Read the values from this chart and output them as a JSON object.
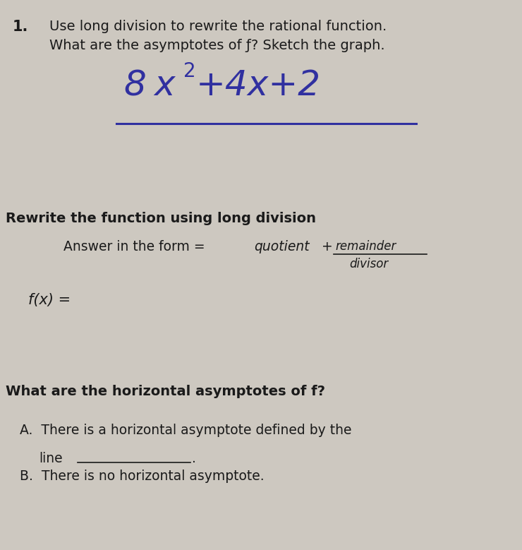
{
  "background_color": "#cdc8c0",
  "font_color": "#1a1a1a",
  "handwritten_color": "#3030a0",
  "title_number": "1.",
  "title_line1": "Use long division to rewrite the rational function.",
  "title_line2": "What are the asymptotes of ƒ? Sketch the graph.",
  "section1_line1": "Rewrite the function using long division",
  "answer_form_normal": "Answer in the form = ",
  "answer_form_italic": "quotient",
  "answer_form_plus": " + ",
  "fraction_numerator": "remainder",
  "fraction_denominator": "divisor",
  "fx_label": "f(x) =",
  "section2_line1": "What are the horizontal asymptotes of f?",
  "option_a_line1": "A.  There is a horizontal asymptote defined by the",
  "option_a_line2": "line",
  "option_b": "B.  There is no horizontal asymptote.",
  "fig_width": 7.4,
  "fig_height": 7.79,
  "dpi": 100
}
